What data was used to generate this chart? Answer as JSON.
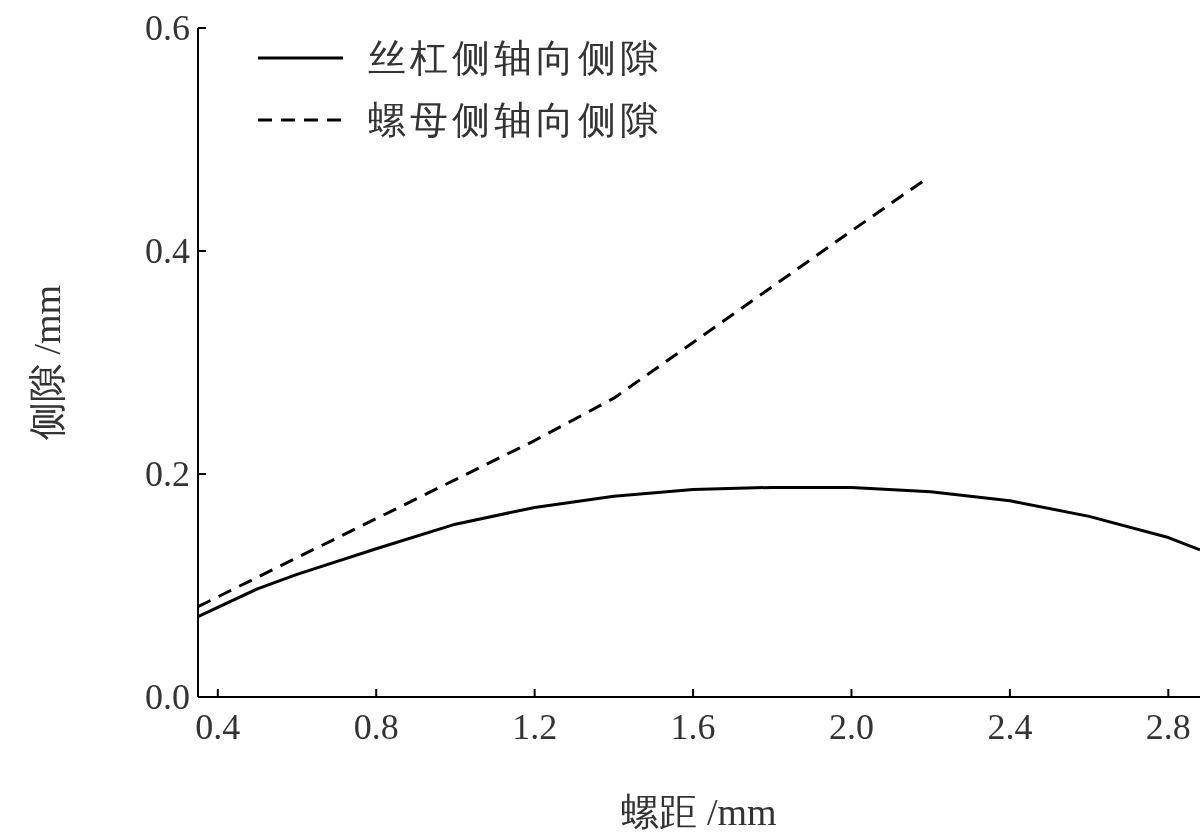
{
  "chart_data": {
    "type": "line",
    "xlabel": "螺距 /mm",
    "ylabel": "侧隙 /mm",
    "xlim": [
      0.35,
      2.88
    ],
    "ylim": [
      0,
      0.6
    ],
    "xticks": [
      0.4,
      0.8,
      1.2,
      1.6,
      {
        "value": 2,
        "label": "2.0"
      },
      2.4,
      2.8
    ],
    "yticks": [
      {
        "value": 0,
        "label": "0.0"
      },
      0.2,
      0.4,
      0.6
    ],
    "legend": "top left",
    "grid": false,
    "x": [
      0.35,
      0.5,
      0.6,
      0.8,
      1.0,
      1.2,
      1.4,
      1.6,
      1.8,
      2.0,
      2.2,
      2.4,
      2.6,
      2.8,
      2.88
    ],
    "series": [
      {
        "name": "丝杠侧轴向侧隙",
        "color": "#000000",
        "line_style": "solid",
        "values": [
          0.072,
          0.097,
          0.11,
          0.133,
          0.155,
          0.17,
          0.18,
          0.186,
          0.188,
          0.188,
          0.184,
          0.176,
          0.162,
          0.143,
          0.132
        ]
      },
      {
        "name": "螺母侧轴向侧隙",
        "color": "#000000",
        "line_style": "dashed",
        "x": [
          0.35,
          0.6,
          0.8,
          1.0,
          1.2,
          1.4,
          1.6,
          1.8,
          2.0,
          2.19
        ],
        "values": [
          0.081,
          0.125,
          0.16,
          0.195,
          0.23,
          0.268,
          0.318,
          0.368,
          0.418,
          0.465
        ]
      }
    ]
  }
}
